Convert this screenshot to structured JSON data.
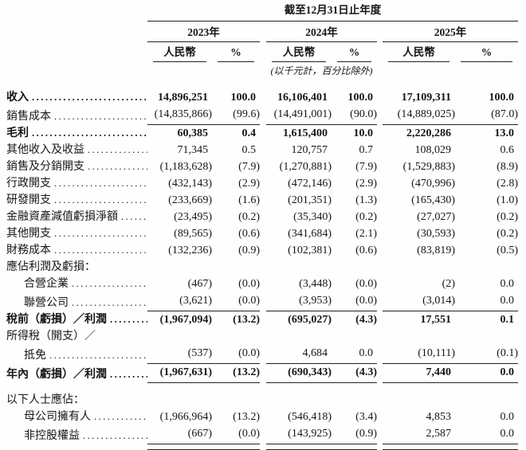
{
  "table": {
    "title": "截至12月31日止年度",
    "unit_note": "(以千元計，百分比除外)",
    "years": [
      {
        "year": "2023年",
        "cols": [
          "人民幣",
          "%"
        ]
      },
      {
        "year": "2024年",
        "cols": [
          "人民幣",
          "%"
        ]
      },
      {
        "year": "2025年",
        "cols": [
          "人民幣",
          "%"
        ]
      }
    ],
    "rows": [
      {
        "label": "收入",
        "leader": true,
        "bold": true,
        "values": [
          "14,896,251",
          "100.0",
          "16,106,401",
          "100.0",
          "17,109,311",
          "100.0"
        ]
      },
      {
        "label": "銷售成本",
        "leader": true,
        "rule_below": true,
        "values": [
          "(14,835,866)",
          "(99.6)",
          "(14,491,001)",
          "(90.0)",
          "(14,889,025)",
          "(87.0)"
        ]
      },
      {
        "label": "毛利",
        "leader": true,
        "bold": true,
        "values": [
          "60,385",
          "0.4",
          "1,615,400",
          "10.0",
          "2,220,286",
          "13.0"
        ]
      },
      {
        "label": "其他收入及收益",
        "leader": true,
        "values": [
          "71,345",
          "0.5",
          "120,757",
          "0.7",
          "108,029",
          "0.6"
        ]
      },
      {
        "label": "銷售及分銷開支",
        "leader": true,
        "values": [
          "(1,183,628)",
          "(7.9)",
          "(1,270,881)",
          "(7.9)",
          "(1,529,883)",
          "(8.9)"
        ]
      },
      {
        "label": "行政開支",
        "leader": true,
        "values": [
          "(432,143)",
          "(2.9)",
          "(472,146)",
          "(2.9)",
          "(470,996)",
          "(2.8)"
        ]
      },
      {
        "label": "研發開支",
        "leader": true,
        "values": [
          "(233,669)",
          "(1.6)",
          "(201,351)",
          "(1.3)",
          "(165,430)",
          "(1.0)"
        ]
      },
      {
        "label": "金融資產減值虧損淨額",
        "leader": true,
        "values": [
          "(23,495)",
          "(0.2)",
          "(35,340)",
          "(0.2)",
          "(27,027)",
          "(0.2)"
        ]
      },
      {
        "label": "其他開支",
        "leader": true,
        "values": [
          "(89,565)",
          "(0.6)",
          "(341,684)",
          "(2.1)",
          "(30,593)",
          "(0.2)"
        ]
      },
      {
        "label": "財務成本",
        "leader": true,
        "values": [
          "(132,236)",
          "(0.9)",
          "(102,381)",
          "(0.6)",
          "(83,819)",
          "(0.5)"
        ]
      },
      {
        "label": "應佔利潤及虧損：",
        "values": [
          "",
          "",
          "",
          "",
          "",
          ""
        ]
      },
      {
        "label": "合營企業",
        "indent": true,
        "leader": true,
        "values": [
          "(467)",
          "(0.0)",
          "(3,448)",
          "(0.0)",
          "(2)",
          "0.0"
        ]
      },
      {
        "label": "聯營公司",
        "indent": true,
        "leader": true,
        "rule_below": true,
        "values": [
          "(3,621)",
          "(0.0)",
          "(3,953)",
          "(0.0)",
          "(3,014)",
          "0.0"
        ]
      },
      {
        "label": "稅前（虧損）／利潤",
        "leader": true,
        "bold": true,
        "values": [
          "(1,967,094)",
          "(13.2)",
          "(695,027)",
          "(4.3)",
          "17,551",
          "0.1"
        ]
      },
      {
        "label": "所得稅（開支）／",
        "values": [
          "",
          "",
          "",
          "",
          "",
          ""
        ]
      },
      {
        "label": "抵免",
        "indent": true,
        "leader": true,
        "rule_below": true,
        "values": [
          "(537)",
          "(0.0)",
          "4,684",
          "0.0",
          "(10,111)",
          "(0.1)"
        ]
      },
      {
        "label": "年內（虧損）／利潤",
        "leader": true,
        "bold": true,
        "rule_below": true,
        "values": [
          "(1,967,631)",
          "(13.2)",
          "(690,343)",
          "(4.3)",
          "7,440",
          "0.0"
        ]
      },
      {
        "label": "以下人士應佔：",
        "spacer_before": true,
        "values": [
          "",
          "",
          "",
          "",
          "",
          ""
        ]
      },
      {
        "label": "母公司擁有人",
        "indent": true,
        "leader": true,
        "values": [
          "(1,966,964)",
          "(13.2)",
          "(546,418)",
          "(3.4)",
          "4,853",
          "0.0"
        ]
      },
      {
        "label": "非控股權益",
        "indent": true,
        "leader": true,
        "rule_below": true,
        "double_rule": true,
        "values": [
          "(667)",
          "(0.0)",
          "(143,925)",
          "(0.9)",
          "2,587",
          "0.0"
        ]
      }
    ]
  }
}
